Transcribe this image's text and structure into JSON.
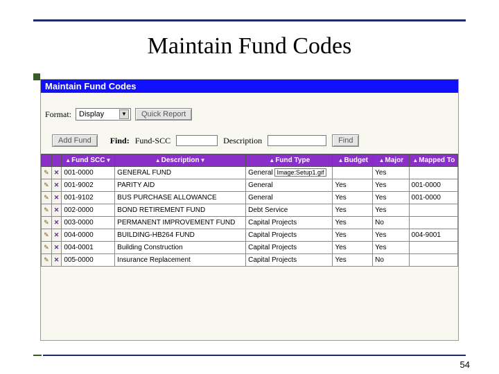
{
  "slide": {
    "title": "Maintain Fund Codes",
    "page_number": "54"
  },
  "panel": {
    "title": "Maintain Fund Codes",
    "format_label": "Format:",
    "format_value": "Display",
    "quick_report_btn": "Quick Report",
    "add_fund_btn": "Add Fund",
    "find_label": "Find:",
    "find_fundscc_label": "Fund-SCC",
    "find_desc_label": "Description",
    "find_btn": "Find"
  },
  "table": {
    "headers": {
      "fund_scc": "Fund SCC",
      "description": "Description",
      "fund_type": "Fund Type",
      "budget": "Budget",
      "major": "Major",
      "mapped_to": "Mapped To"
    },
    "rows": [
      {
        "scc": "001-0000",
        "desc": "GENERAL FUND",
        "type": "General",
        "type_extra": "Image:Setup1.gif",
        "budget": "",
        "major": "Yes",
        "mapped": ""
      },
      {
        "scc": "001-9002",
        "desc": "PARITY AID",
        "type": "General",
        "budget": "Yes",
        "major": "Yes",
        "mapped": "001-0000"
      },
      {
        "scc": "001-9102",
        "desc": "BUS PURCHASE ALLOWANCE",
        "type": "General",
        "budget": "Yes",
        "major": "Yes",
        "mapped": "001-0000"
      },
      {
        "scc": "002-0000",
        "desc": "BOND RETIREMENT FUND",
        "type": "Debt Service",
        "budget": "Yes",
        "major": "Yes",
        "mapped": ""
      },
      {
        "scc": "003-0000",
        "desc": "PERMANENT IMPROVEMENT FUND",
        "type": "Capital Projects",
        "budget": "Yes",
        "major": "No",
        "mapped": ""
      },
      {
        "scc": "004-0000",
        "desc": "BUILDING-HB264 FUND",
        "type": "Capital Projects",
        "budget": "Yes",
        "major": "Yes",
        "mapped": "004-9001"
      },
      {
        "scc": "004-0001",
        "desc": "Building Construction",
        "type": "Capital Projects",
        "budget": "Yes",
        "major": "Yes",
        "mapped": ""
      },
      {
        "scc": "005-0000",
        "desc": "Insurance Replacement",
        "type": "Capital Projects",
        "budget": "Yes",
        "major": "No",
        "mapped": ""
      }
    ]
  },
  "colors": {
    "titlebar": "#1010ff",
    "header_bg": "#8a2fc9",
    "slide_accent": "#1a2a6c",
    "slide_bullet": "#3a5a2a"
  }
}
